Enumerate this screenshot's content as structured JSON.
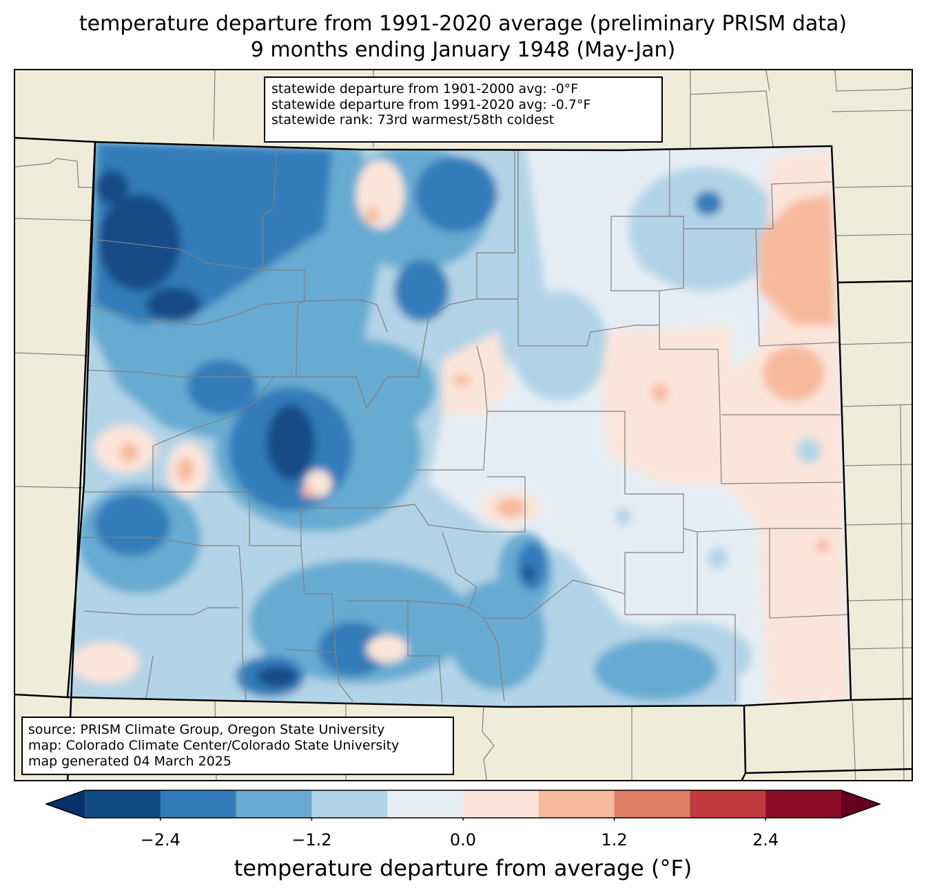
{
  "title": {
    "line1": "temperature departure from 1991-2020 average (preliminary PRISM data)",
    "line2": "9 months ending January 1948 (May-Jan)"
  },
  "stats": {
    "line1": "statewide departure from 1901-2000 avg: -0°F",
    "line2": "statewide departure from 1991-2020 avg: -0.7°F",
    "line3": "statewide rank: 73rd warmest/58th coldest"
  },
  "credits": {
    "line1": "source: PRISM Climate Group, Oregon State University",
    "line2": "map: Colorado Climate Center/Colorado State University",
    "line3": "map generated 04 March 2025"
  },
  "colorbar": {
    "label": "temperature departure from average (°F)",
    "ticks": [
      "−2.4",
      "−1.2",
      "0.0",
      "1.2",
      "2.4"
    ],
    "levels": [
      -3.0,
      -2.4,
      -1.8,
      -1.2,
      -0.6,
      0.0,
      0.6,
      1.2,
      1.8,
      2.4,
      3.0
    ],
    "colors": [
      "#08306b",
      "#134b87",
      "#327cba",
      "#68abd2",
      "#b2d4e7",
      "#e6eef5",
      "#fbe5da",
      "#f7b99d",
      "#e17f67",
      "#c13a3e",
      "#8c0d25",
      "#67001f"
    ]
  },
  "colors": {
    "land": "#efedda",
    "county_lines": "#808080",
    "state_lines": "#000000"
  }
}
